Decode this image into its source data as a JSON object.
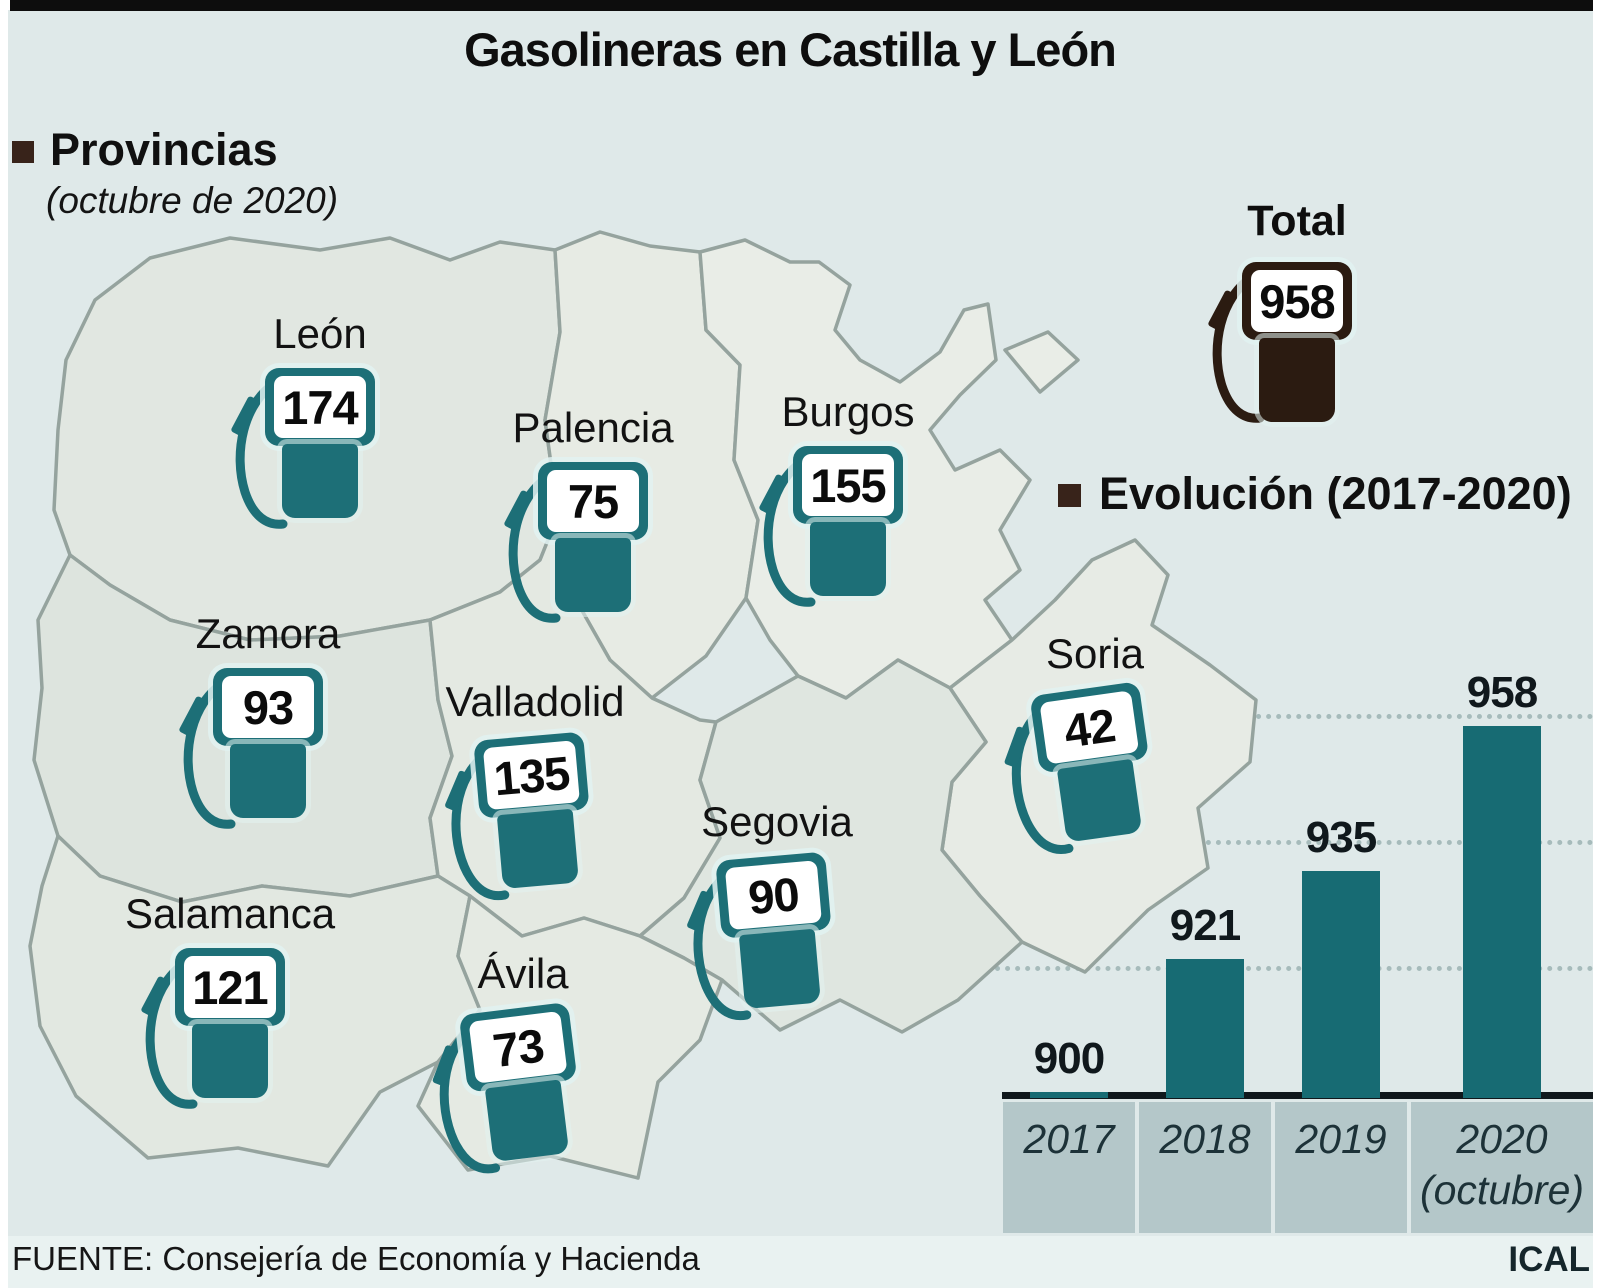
{
  "title": "Gasolineras en Castilla y León",
  "sections": {
    "provinces": {
      "heading": "Provincias",
      "subheading": "(octubre de 2020)"
    },
    "evolution": {
      "heading": "Evolución (2017-2020)"
    }
  },
  "total": {
    "label": "Total",
    "value": "958"
  },
  "provinces": [
    {
      "name": "León",
      "value": "174"
    },
    {
      "name": "Palencia",
      "value": "75"
    },
    {
      "name": "Burgos",
      "value": "155"
    },
    {
      "name": "Zamora",
      "value": "93"
    },
    {
      "name": "Valladolid",
      "value": "135"
    },
    {
      "name": "Soria",
      "value": "42"
    },
    {
      "name": "Segovia",
      "value": "90"
    },
    {
      "name": "Salamanca",
      "value": "121"
    },
    {
      "name": "Ávila",
      "value": "73"
    }
  ],
  "chart": {
    "cells": [
      {
        "label": "2017",
        "sub": ""
      },
      {
        "label": "2018",
        "sub": ""
      },
      {
        "label": "2019",
        "sub": ""
      },
      {
        "label": "2020",
        "sub": "(octubre)"
      }
    ]
  },
  "chart_data": {
    "type": "bar",
    "title": "Evolución (2017-2020)",
    "categories": [
      "2017",
      "2018",
      "2019",
      "2020 (octubre)"
    ],
    "values": [
      900,
      921,
      935,
      958
    ],
    "gridline_values": [
      920,
      940,
      960
    ],
    "ylim": [
      899,
      975
    ],
    "xlabel": "",
    "ylabel": "",
    "grid": "dotted-horizontal",
    "legend": "none",
    "bar_color": "#176b73"
  },
  "footer": {
    "source": "FUENTE: Consejería de Economía y Hacienda",
    "credit": "ICAL"
  },
  "colors": {
    "background": "#dfe9e9",
    "pump_teal": "#1d6f77",
    "total_pump_dark": "#2b1b11",
    "bar_teal": "#176b73",
    "map_border": "#95a39e",
    "year_band": "#b4c7c9",
    "top_bar": "#0d0d0d"
  }
}
